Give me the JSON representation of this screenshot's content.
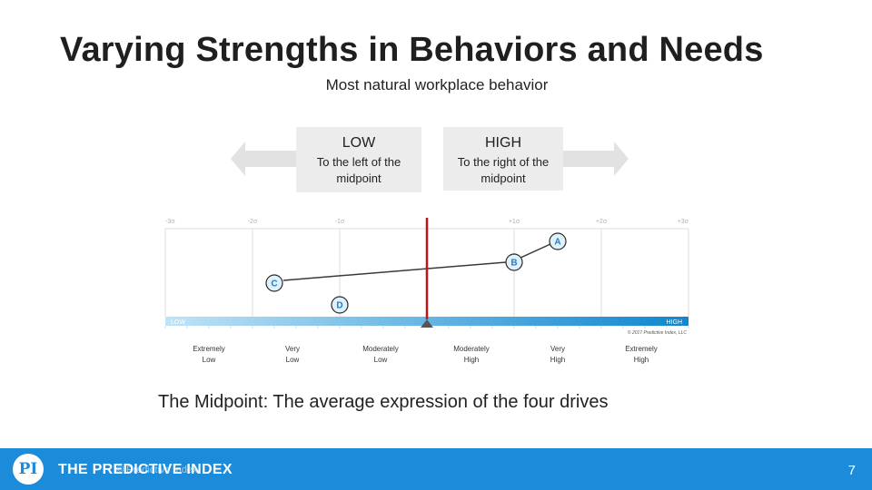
{
  "slide": {
    "title": "Varying Strengths in Behaviors and Needs",
    "subtitle": "Most natural workplace behavior",
    "low_box": {
      "heading": "LOW",
      "line1": "To the left of the",
      "line2": "midpoint"
    },
    "high_box": {
      "heading": "HIGH",
      "line1": "To the right of the",
      "line2": "midpoint"
    },
    "caption": "The Midpoint: The average expression of the four drives",
    "page_number": "7"
  },
  "scale": {
    "sigma_labels": [
      "-3σ",
      "-2σ",
      "-1σ",
      "",
      "+1σ",
      "+2σ",
      "+3σ"
    ],
    "bar_low": "LOW",
    "bar_high": "HIGH",
    "copyright": "© 2017 Predictive Index, LLC",
    "bottom_labels": [
      {
        "l1": "Extremely",
        "l2": "Low"
      },
      {
        "l1": "Very",
        "l2": "Low"
      },
      {
        "l1": "Moderately",
        "l2": "Low"
      },
      {
        "l1": "Moderately",
        "l2": "High"
      },
      {
        "l1": "Very",
        "l2": "High"
      },
      {
        "l1": "Extremely",
        "l2": "High"
      }
    ]
  },
  "drives": [
    {
      "name": "A",
      "sigma": 1.5
    },
    {
      "name": "B",
      "sigma": 1.0
    },
    {
      "name": "C",
      "sigma": -1.75
    },
    {
      "name": "D",
      "sigma": -1.0
    }
  ],
  "chart_data": {
    "type": "scatter",
    "x_range": [
      -3,
      3
    ],
    "midpoint": 0,
    "points": [
      {
        "label": "A",
        "x": 1.5
      },
      {
        "label": "B",
        "x": 1.0
      },
      {
        "label": "C",
        "x": -1.75
      },
      {
        "label": "D",
        "x": -1.0
      }
    ]
  },
  "footer": {
    "brand": "THE PREDICTIVE INDEX",
    "brand_overlay": "© Predictive Index",
    "logo_text": "PI"
  },
  "colors": {
    "accent": "#1c8bd9",
    "midpoint": "#c0131b",
    "marker_fill": "#dff1fb",
    "bar_light": "#bfe3f7",
    "bar_dark": "#0f86cf"
  }
}
